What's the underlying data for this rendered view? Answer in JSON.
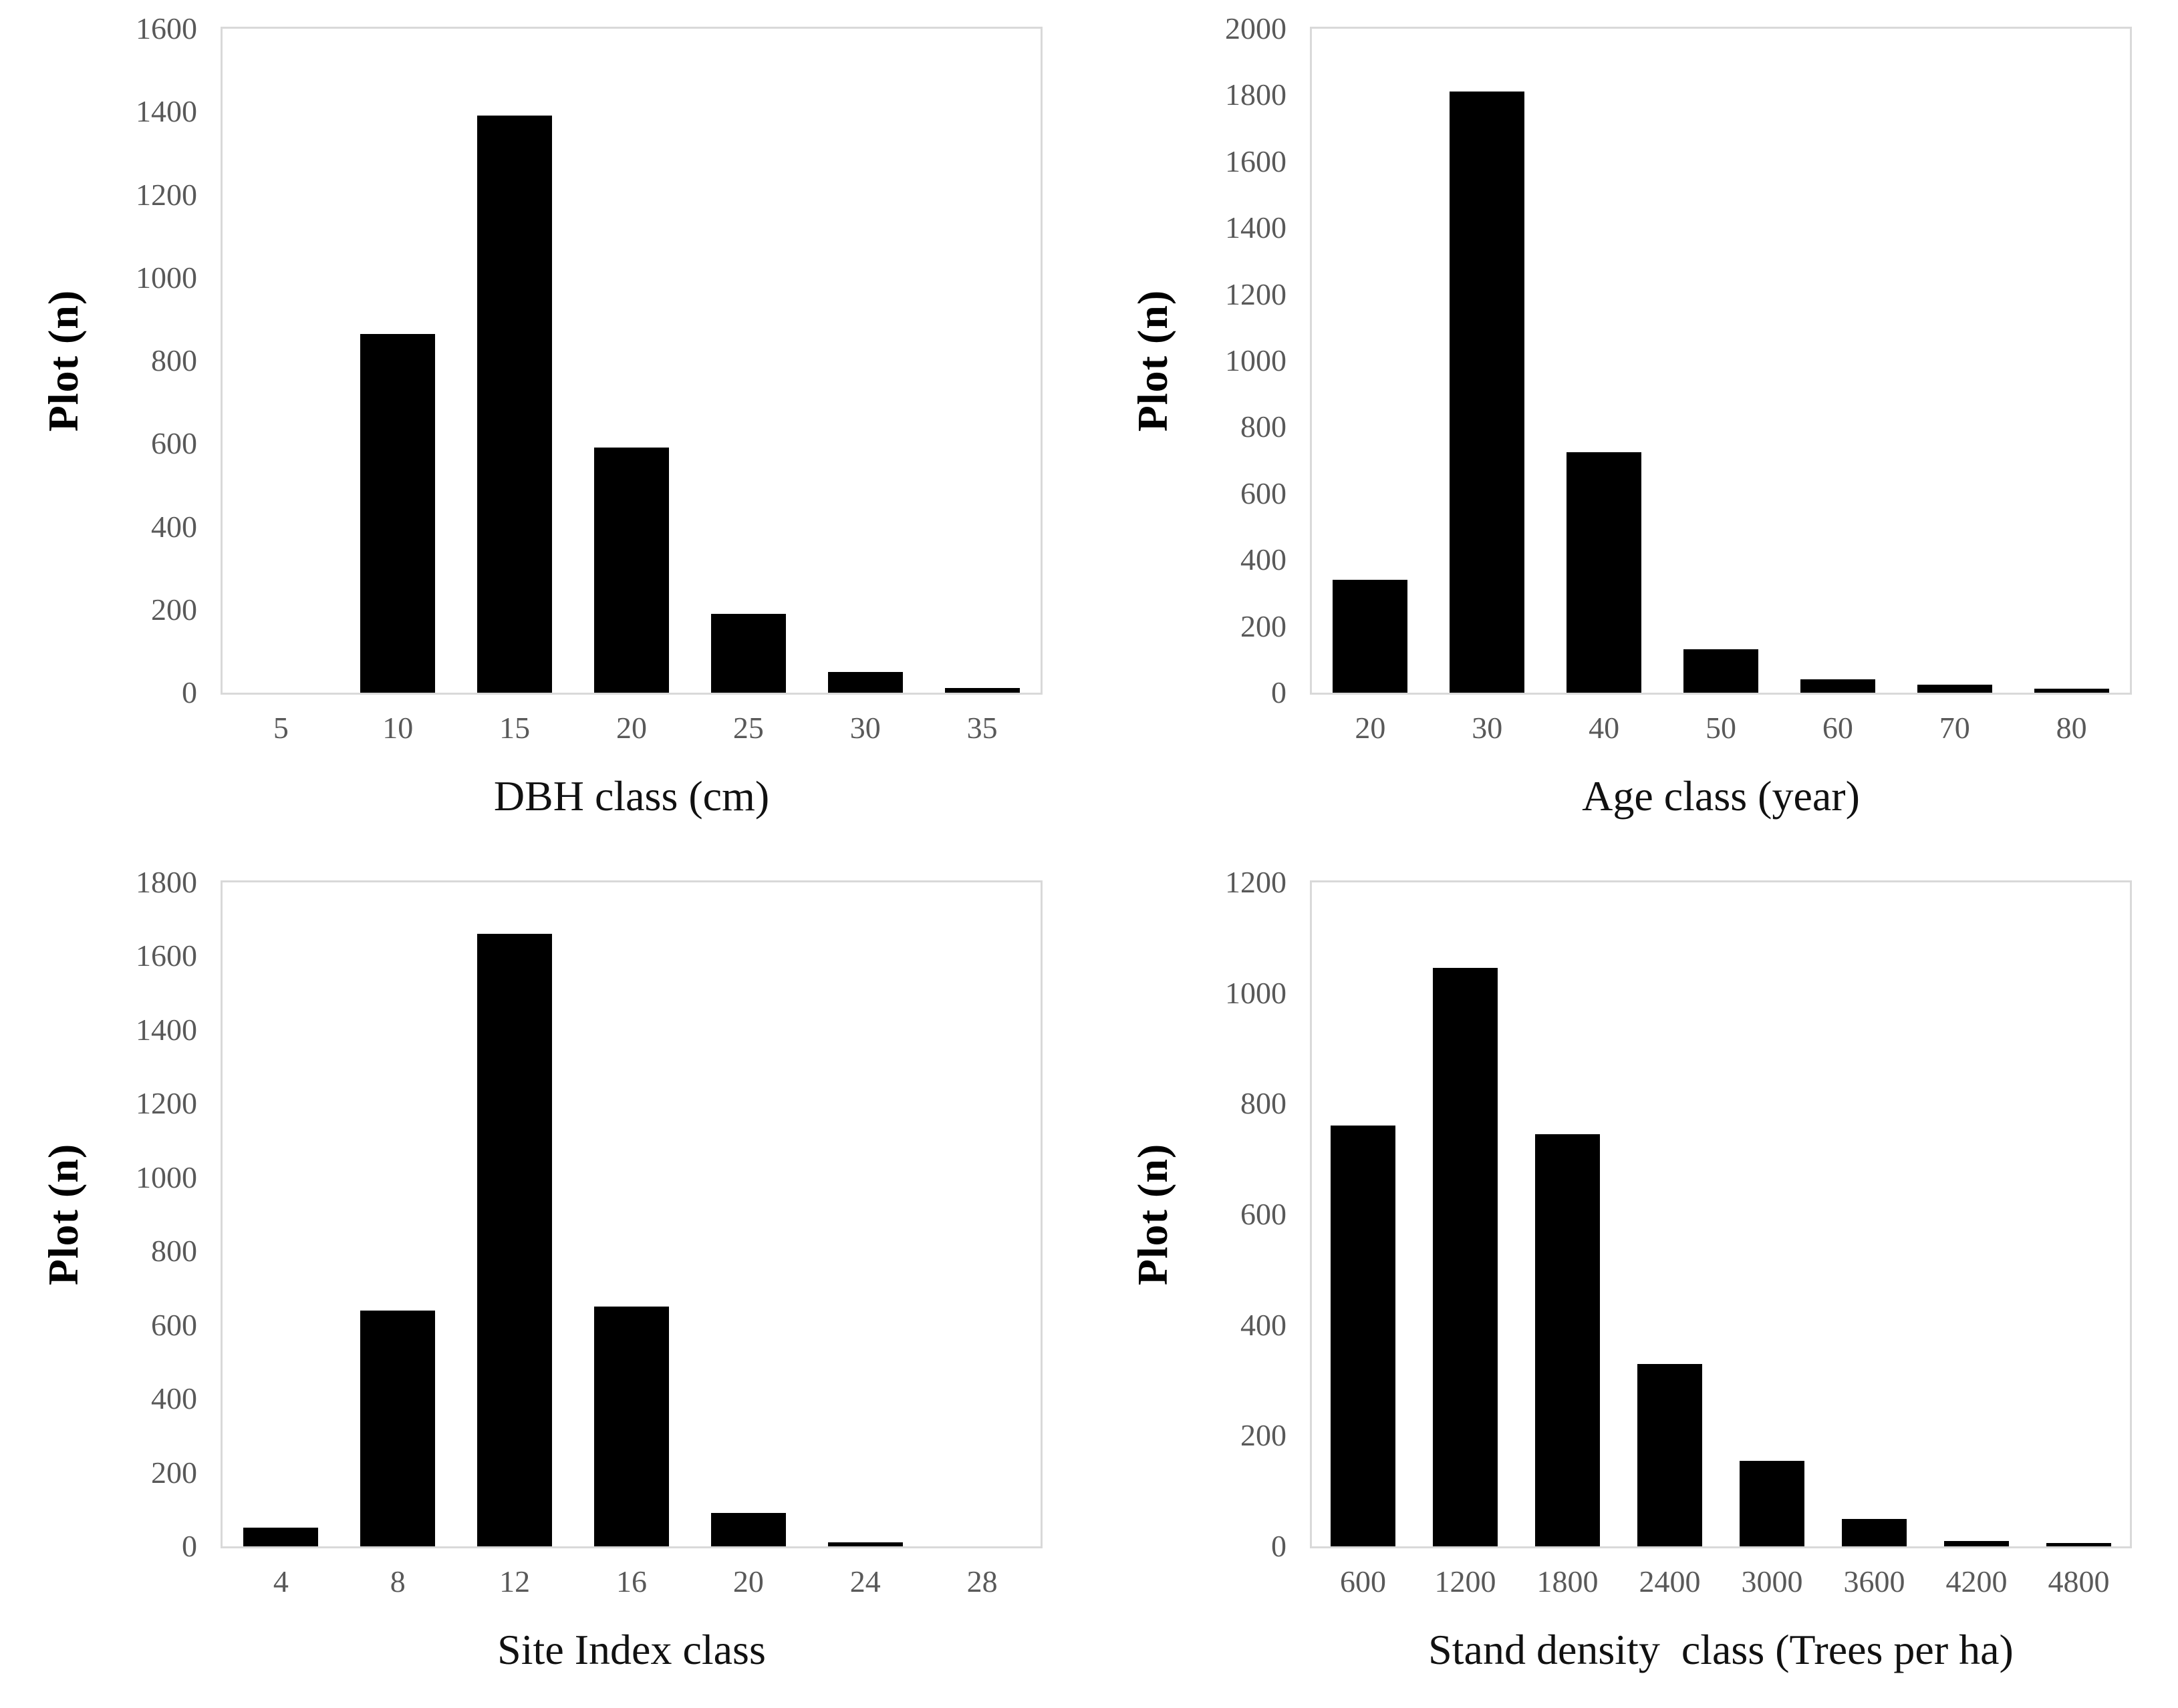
{
  "figure": {
    "description": "Four-panel histogram figure of forest inventory plot distributions",
    "y_axis_title": "Plot (n)",
    "colors": {
      "bar": "#000000",
      "plot_border": "#d9d9d9",
      "tick_text": "#595959",
      "axis_title_text": "#111111",
      "background": "#ffffff"
    }
  },
  "chart_data": [
    {
      "type": "bar",
      "title": "",
      "xlabel": "DBH class (cm)",
      "ylabel": "Plot (n)",
      "categories": [
        "5",
        "10",
        "15",
        "20",
        "25",
        "30",
        "35"
      ],
      "values": [
        0,
        865,
        1390,
        590,
        190,
        50,
        12
      ],
      "ylim": [
        0,
        1600
      ],
      "ytick_step": 200,
      "grid": false,
      "legend": "none"
    },
    {
      "type": "bar",
      "title": "",
      "xlabel": "Age class (year)",
      "ylabel": "Plot (n)",
      "categories": [
        "20",
        "30",
        "40",
        "50",
        "60",
        "70",
        "80"
      ],
      "values": [
        340,
        1810,
        725,
        130,
        40,
        25,
        12
      ],
      "ylim": [
        0,
        2000
      ],
      "ytick_step": 200,
      "grid": false,
      "legend": "none"
    },
    {
      "type": "bar",
      "title": "",
      "xlabel": "Site Index class",
      "ylabel": "Plot (n)",
      "categories": [
        "4",
        "8",
        "12",
        "16",
        "20",
        "24",
        "28"
      ],
      "values": [
        50,
        640,
        1660,
        650,
        90,
        10,
        0
      ],
      "ylim": [
        0,
        1800
      ],
      "ytick_step": 200,
      "grid": false,
      "legend": "none"
    },
    {
      "type": "bar",
      "title": "",
      "xlabel": "Stand density  class (Trees per ha)",
      "ylabel": "Plot (n)",
      "categories": [
        "600",
        "1200",
        "1800",
        "2400",
        "3000",
        "3600",
        "4200",
        "4800"
      ],
      "values": [
        760,
        1045,
        745,
        330,
        155,
        50,
        10,
        6
      ],
      "ylim": [
        0,
        1200
      ],
      "ytick_step": 200,
      "grid": false,
      "legend": "none"
    }
  ]
}
